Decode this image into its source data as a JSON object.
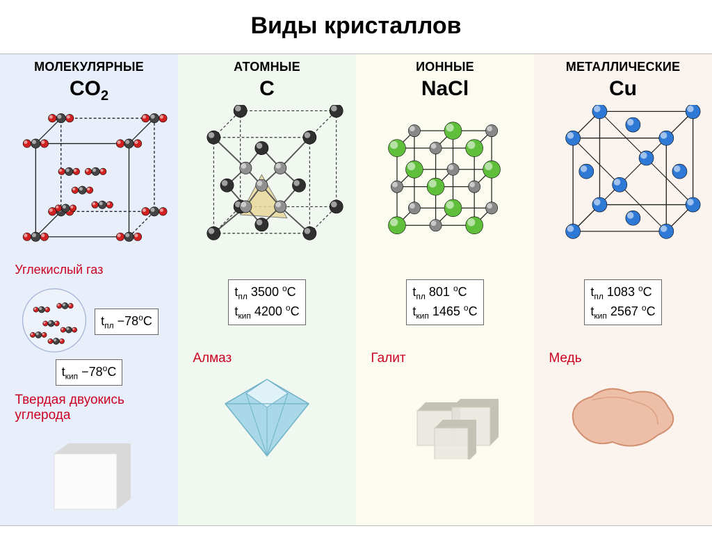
{
  "title": "Виды кристаллов",
  "columns": [
    {
      "header": "МОЛЕКУЛЯРНЫЕ",
      "formula_html": "CO<sub>2</sub>",
      "bg": "#e8effa",
      "gas_label": "Углекислый газ",
      "temps": [
        "t<sub>пл</sub> −78<sup>o</sup>C",
        "t<sub>кип</sub> −78<sup>o</sup>C"
      ],
      "example": "Твердая двуокись углерода",
      "lattice": {
        "atom_colors": {
          "c": "#444444",
          "o": "#d02020"
        },
        "edge_color": "#222"
      },
      "photo": {
        "type": "cube",
        "fill": "#fafafa",
        "shade": "#d9d9d9"
      }
    },
    {
      "header": "АТОМНЫЕ",
      "formula_html": "C",
      "bg": "#f0f8f0",
      "temps": [
        "t<sub>пл</sub> 3500 <sup>o</sup>C",
        "t<sub>кип</sub> 4200 <sup>o</sup>C"
      ],
      "example": "Алмаз",
      "lattice": {
        "atom_colors": {
          "c1": "#303030",
          "c2": "#909090"
        },
        "edge_color": "#222",
        "face_fill": "#e8d79a"
      },
      "photo": {
        "type": "diamond",
        "fill": "#a9d9e8",
        "shade": "#6fb2c8"
      }
    },
    {
      "header": "ИОННЫЕ",
      "formula_html": "NaCl",
      "bg": "#fcfbef",
      "temps": [
        "t<sub>пл</sub> 801 <sup>o</sup>C",
        "t<sub>кип</sub> 1465 <sup>o</sup>C"
      ],
      "example": "Галит",
      "lattice": {
        "atom_colors": {
          "cl": "#5fbf3a",
          "na": "#888888"
        },
        "edge_color": "#222"
      },
      "photo": {
        "type": "halite",
        "fill": "#e8e6df",
        "shade": "#c4c1b5"
      }
    },
    {
      "header": "МЕТАЛЛИЧЕСКИЕ",
      "formula_html": "Cu",
      "bg": "#fbf4ee",
      "temps": [
        "t<sub>пл</sub> 1083 <sup>o</sup>C",
        "t<sub>кип</sub> 2567 <sup>o</sup>C"
      ],
      "example": "Медь",
      "lattice": {
        "atom_colors": {
          "cu": "#2e78d6"
        },
        "edge_color": "#222"
      },
      "photo": {
        "type": "copper",
        "fill": "#eebfa8",
        "shade": "#d18f70"
      }
    }
  ],
  "style": {
    "title_fontsize": 34,
    "header_fontsize": 18,
    "formula_fontsize": 30,
    "temp_fontsize": 18,
    "example_color": "#cc0022",
    "atom_r_big": 11,
    "atom_r_small": 7,
    "edge_w": 1.4
  }
}
